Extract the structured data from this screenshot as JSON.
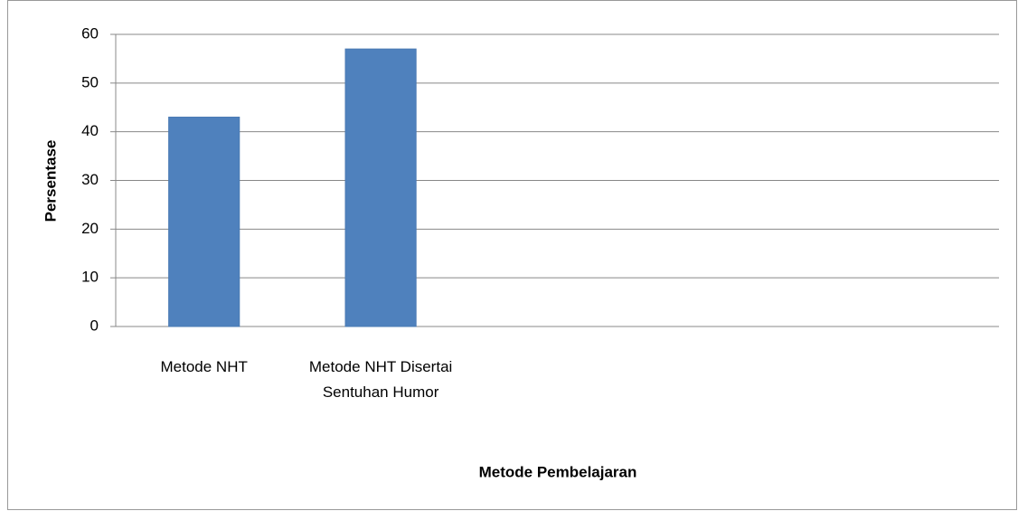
{
  "chart_data": {
    "type": "bar",
    "categories": [
      "Metode NHT",
      "Metode NHT Disertai Sentuhan Humor",
      null,
      null,
      null
    ],
    "values": [
      43,
      57,
      null,
      null,
      null
    ],
    "color": "#4f81bd",
    "x_label": "Metode Pembelajaran",
    "y_label": "Persentase",
    "ylim": [
      0,
      60
    ],
    "yticks": [
      0,
      10,
      20,
      30,
      40,
      50,
      60
    ],
    "grid": true
  }
}
